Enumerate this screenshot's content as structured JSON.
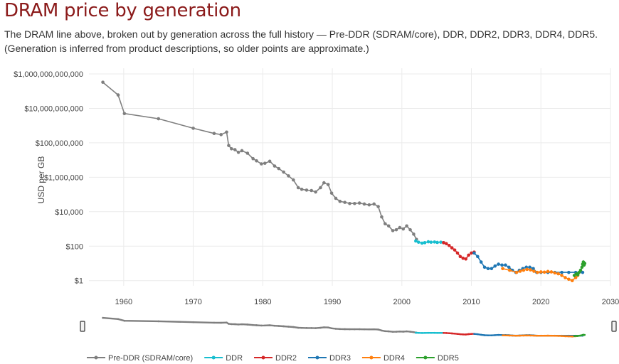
{
  "page": {
    "title": "DRAM price by generation",
    "subtitle": "The DRAM line above, broken out by generation across the full history — Pre-DDR (SDRAM/core), DDR, DDR2, DDR3, DDR4, DDR5. (Generation is inferred from product descriptions, so older points are approximate.)"
  },
  "chart_data": {
    "type": "line",
    "title": "",
    "xlabel": "",
    "ylabel": "USD per GB",
    "y_scale": "log",
    "xlim": [
      1955,
      2030
    ],
    "ylim": [
      0.5,
      1000000000000
    ],
    "grid": true,
    "legend_position": "bottom",
    "range_slider": true,
    "x_ticks": [
      "1960",
      "1970",
      "1980",
      "1990",
      "2000",
      "2010",
      "2020",
      "2030"
    ],
    "x_tick_values": [
      1960,
      1970,
      1980,
      1990,
      2000,
      2010,
      2020,
      2030
    ],
    "y_ticks": [
      "$1",
      "$100",
      "$10,000",
      "$1,000,000",
      "$100,000,000",
      "$10,000,000,000",
      "$1,000,000,000,000"
    ],
    "y_tick_values": [
      1,
      100,
      10000,
      1000000,
      100000000,
      10000000000,
      1000000000000
    ],
    "series": [
      {
        "name": "Pre-DDR (SDRAM/core)",
        "color": "#7f7f7f",
        "x": [
          1957.0,
          1959.2,
          1960.1,
          1965.0,
          1970.0,
          1973.0,
          1974.0,
          1974.8,
          1975.1,
          1975.5,
          1976.0,
          1976.5,
          1977.0,
          1977.8,
          1978.6,
          1979.1,
          1979.8,
          1980.3,
          1981.0,
          1981.7,
          1982.3,
          1983.0,
          1983.7,
          1984.4,
          1985.1,
          1985.6,
          1986.3,
          1987.0,
          1987.6,
          1988.3,
          1988.8,
          1989.4,
          1989.9,
          1990.5,
          1991.1,
          1991.8,
          1992.5,
          1993.2,
          1993.9,
          1994.6,
          1995.3,
          1996.0,
          1996.6,
          1997.1,
          1997.6,
          1998.1,
          1998.7,
          1999.2,
          1999.7,
          2000.2,
          2000.7,
          2001.2,
          2001.7,
          2002.1
        ],
        "y": [
          330000000000,
          60000000000,
          5000000000,
          2500000000,
          700000000,
          350000000,
          300000000,
          420000000,
          70000000,
          45000000,
          40000000,
          28000000,
          35000000,
          25000000,
          12000000,
          9000000,
          6000000,
          6500000,
          8500000,
          4500000,
          3200000,
          2000000,
          1200000,
          700000,
          250000,
          200000,
          180000,
          170000,
          140000,
          250000,
          480000,
          380000,
          120000,
          60000,
          40000,
          35000,
          30000,
          30000,
          32000,
          28000,
          25000,
          28000,
          20000,
          5000,
          2000,
          1500,
          800,
          900,
          1200,
          1000,
          1500,
          900,
          500,
          250
        ]
      },
      {
        "name": "DDR",
        "color": "#17becf",
        "x": [
          2002.0,
          2002.4,
          2002.9,
          2003.3,
          2003.8,
          2004.2,
          2004.7,
          2005.1,
          2005.6,
          2006.0
        ],
        "y": [
          200,
          170,
          150,
          160,
          180,
          170,
          175,
          165,
          170,
          160
        ]
      },
      {
        "name": "DDR2",
        "color": "#d62728",
        "x": [
          2006.0,
          2006.4,
          2006.8,
          2007.2,
          2007.6,
          2008.0,
          2008.4,
          2008.8,
          2009.2,
          2009.6,
          2010.0,
          2010.4
        ],
        "y": [
          160,
          140,
          110,
          80,
          60,
          40,
          25,
          20,
          18,
          30,
          40,
          45
        ]
      },
      {
        "name": "DDR3",
        "color": "#1f77b4",
        "x": [
          2010.4,
          2010.9,
          2011.4,
          2011.9,
          2012.4,
          2012.9,
          2013.4,
          2013.9,
          2014.4,
          2014.9,
          2015.4,
          2015.9,
          2016.4,
          2016.9,
          2017.4,
          2017.9,
          2018.4,
          2018.9,
          2019.4,
          2020.0,
          2021.0,
          2022.0,
          2023.0,
          2024.0,
          2025.0,
          2026.0
        ],
        "y": [
          40,
          25,
          12,
          6,
          5,
          5,
          7,
          9,
          8,
          8,
          6,
          4,
          3,
          4,
          5,
          6,
          6,
          5,
          3,
          3,
          3,
          3,
          3,
          3,
          3,
          3
        ]
      },
      {
        "name": "DDR4",
        "color": "#ff7f0e",
        "x": [
          2014.5,
          2015.5,
          2016.5,
          2017.0,
          2017.5,
          2018.0,
          2018.5,
          2019.0,
          2019.5,
          2020.0,
          2020.5,
          2021.0,
          2021.5,
          2022.0,
          2022.5,
          2023.0,
          2023.5,
          2024.0,
          2024.5,
          2025.0,
          2025.3
        ],
        "y": [
          5,
          4,
          3,
          3.5,
          4,
          4.5,
          4.2,
          3.5,
          3,
          3.2,
          3.1,
          3.4,
          3.2,
          2.8,
          2.5,
          2,
          1.5,
          1.2,
          1,
          1.5,
          2
        ]
      },
      {
        "name": "DDR5",
        "color": "#2ca02c",
        "x": [
          2024.8,
          2025.1,
          2025.3,
          2025.5,
          2025.7,
          2025.9,
          2026.0,
          2026.1,
          2026.2,
          2026.3
        ],
        "y": [
          2,
          2.5,
          2.2,
          3,
          4,
          6,
          9,
          12,
          8,
          10
        ]
      }
    ]
  }
}
